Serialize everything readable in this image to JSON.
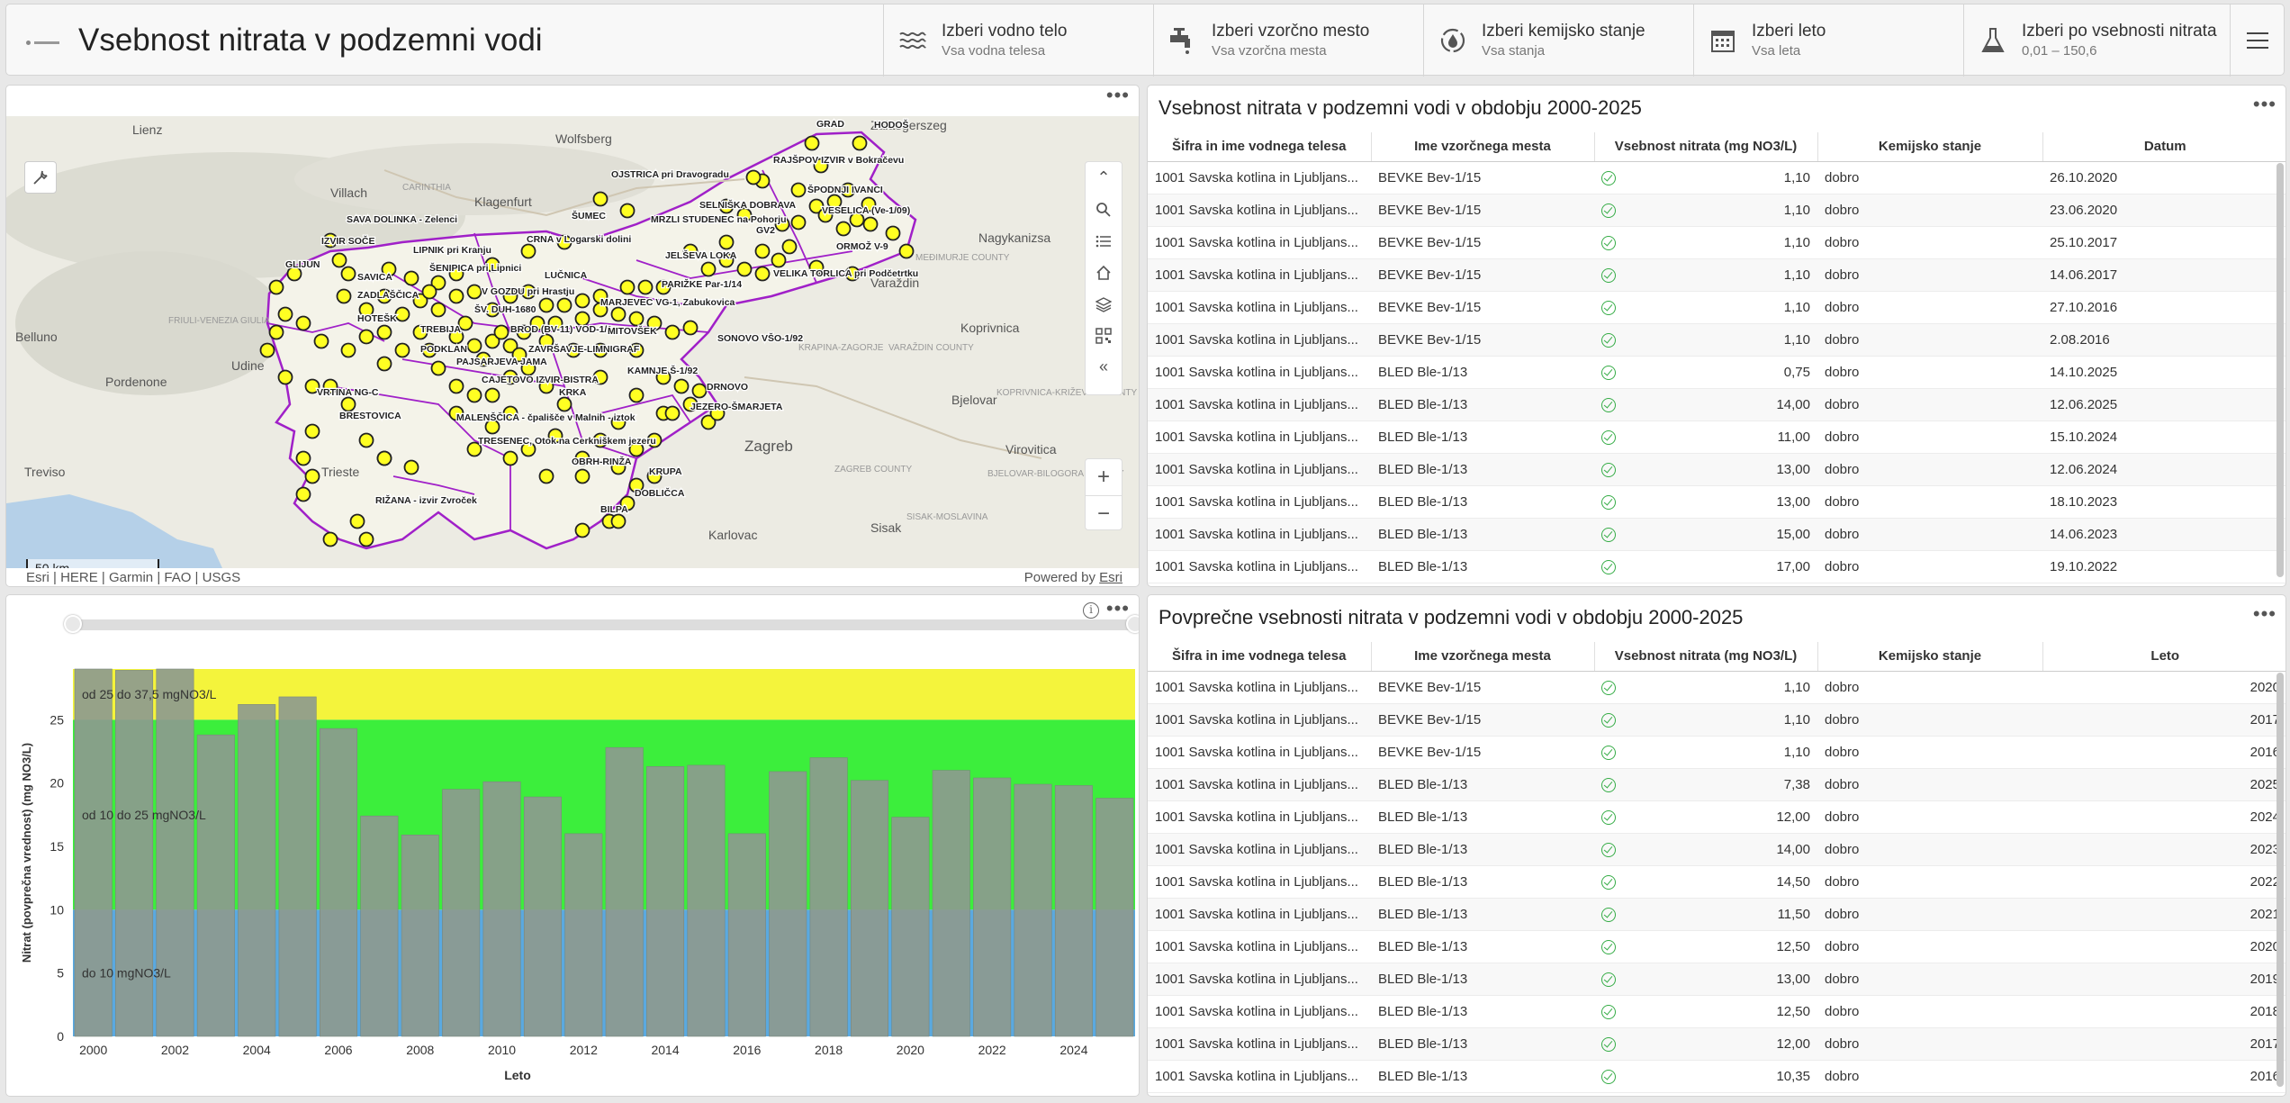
{
  "header": {
    "title": "Vsebnost nitrata v podzemni vodi",
    "selectors": [
      {
        "label": "Izberi vodno telo",
        "value": "Vsa vodna telesa",
        "icon": "waves-icon"
      },
      {
        "label": "Izberi vzorčno mesto",
        "value": "Vsa vzorčna mesta",
        "icon": "faucet-icon"
      },
      {
        "label": "Izberi kemijsko stanje",
        "value": "Vsa stanja",
        "icon": "recycle-drop-icon"
      },
      {
        "label": "Izberi leto",
        "value": "Vsa leta",
        "icon": "calendar-icon"
      },
      {
        "label": "Izberi po vsebnosti nitrata",
        "value": "0,01 – 150,6",
        "icon": "flask-icon"
      }
    ]
  },
  "map": {
    "scale_label": "50 km",
    "attribution": "Esri | HERE | Garmin | FAO | USGS",
    "powered_prefix": "Powered by ",
    "powered_link": "Esri",
    "region_labels": [
      "Lienz",
      "Wolfsberg",
      "Villach",
      "Klagenfurt",
      "CARINTHIA",
      "Zalaegerszeg",
      "Nagykanizsa",
      "Varaždin",
      "Koprivnica",
      "Bjelovar",
      "Virovitica",
      "Zagreb",
      "Karlovac",
      "Sisak",
      "Trieste",
      "Udine",
      "Belluno",
      "Pordenone",
      "Treviso",
      "FRIULI-VENEZIA GIULIA",
      "ZAGREB COUNTY",
      "SISAK-MOSLAVINA",
      "BJELOVAR-BILOGORA COUNTY",
      "KOPRIVNICA-KRIŽEVCI COUNTY",
      "VARAŽDIN COUNTY",
      "MEĐIMURJE COUNTY",
      "KRAPINA-ZAGORJE"
    ],
    "station_labels": [
      "GRAD",
      "HODOŠ",
      "RAJŠPOV IZVIR v Bokračevu",
      "OJSTRICA pri Dravogradu",
      "ŠPODNJI IVANCI",
      "SELNIŠKA DOBRAVA",
      "VESELICA (Ve-1/09)",
      "ŠUMEC",
      "MRZLI STUDENEC na Pohorju",
      "GV2",
      "ORMOŽ V-9",
      "SAVA DOLINKA - Zelenci",
      "IZVIR SOČE",
      "LIPNIK pri Kranju",
      "JELŠEVA LOKA",
      "VELIKA TORLICA pri Podčetrtku",
      "CRNA v Logarski dolini",
      "GLIJUN",
      "SAVICA",
      "ŠENIPICA pri Lipnici",
      "LUČNICA",
      "ZADLAŠČICA",
      "PARIŽKE Par-1/14",
      "V GOZDU pri Hrastju",
      "MARJEVEC VG-1, Zabukovica",
      "HOTEŠK",
      "ŠV. DUH-1680",
      "TREBIJA",
      "BROD (BV-11) VOD-1/1",
      "MITOVŠEK",
      "SONOVO VŠO-1/92",
      "PODKLAN",
      "PAJSARJEVA JAMA",
      "ZAVRŠAVJE-LIMNIGRAF",
      "KAMNJE Š-1/92",
      "VRTINA NG-C",
      "CAJETOVO IZVIR-BISTRA",
      "KRKA",
      "DRNOVO",
      "BRESTOVICA",
      "JEZERO-ŠMARJETA",
      "MALENŠČICA - čpališče v Malnih - iztok",
      "TRESENEC, Otok na Cerkniškem jezeru",
      "OBRH-RINŽA",
      "KRUPA",
      "RIŽANA - izvir Zvroček",
      "DOBLIČCA",
      "BILPA"
    ]
  },
  "table1": {
    "title": "Vsebnost nitrata v podzemni vodi v obdobju 2000-2025",
    "columns": [
      "Šifra in ime vodnega telesa",
      "Ime vzorčnega mesta",
      "Vsebnost nitrata (mg NO3/L)",
      "Kemijsko stanje",
      "Datum"
    ],
    "rows": [
      [
        "1001 Savska kotlina in Ljubljans...",
        "BEVKE Bev-1/15",
        "1,10",
        "dobro",
        "26.10.2020"
      ],
      [
        "1001 Savska kotlina in Ljubljans...",
        "BEVKE Bev-1/15",
        "1,10",
        "dobro",
        "23.06.2020"
      ],
      [
        "1001 Savska kotlina in Ljubljans...",
        "BEVKE Bev-1/15",
        "1,10",
        "dobro",
        "25.10.2017"
      ],
      [
        "1001 Savska kotlina in Ljubljans...",
        "BEVKE Bev-1/15",
        "1,10",
        "dobro",
        "14.06.2017"
      ],
      [
        "1001 Savska kotlina in Ljubljans...",
        "BEVKE Bev-1/15",
        "1,10",
        "dobro",
        "27.10.2016"
      ],
      [
        "1001 Savska kotlina in Ljubljans...",
        "BEVKE Bev-1/15",
        "1,10",
        "dobro",
        "2.08.2016"
      ],
      [
        "1001 Savska kotlina in Ljubljans...",
        "BLED Ble-1/13",
        "0,75",
        "dobro",
        "14.10.2025"
      ],
      [
        "1001 Savska kotlina in Ljubljans...",
        "BLED Ble-1/13",
        "14,00",
        "dobro",
        "12.06.2025"
      ],
      [
        "1001 Savska kotlina in Ljubljans...",
        "BLED Ble-1/13",
        "11,00",
        "dobro",
        "15.10.2024"
      ],
      [
        "1001 Savska kotlina in Ljubljans...",
        "BLED Ble-1/13",
        "13,00",
        "dobro",
        "12.06.2024"
      ],
      [
        "1001 Savska kotlina in Ljubljans...",
        "BLED Ble-1/13",
        "13,00",
        "dobro",
        "18.10.2023"
      ],
      [
        "1001 Savska kotlina in Ljubljans...",
        "BLED Ble-1/13",
        "15,00",
        "dobro",
        "14.06.2023"
      ],
      [
        "1001 Savska kotlina in Ljubljans...",
        "BLED Ble-1/13",
        "17,00",
        "dobro",
        "19.10.2022"
      ]
    ]
  },
  "table2": {
    "title": "Povprečne vsebnosti nitrata v podzemni vodi v obdobju 2000-2025",
    "columns": [
      "Šifra in ime vodnega telesa",
      "Ime vzorčnega mesta",
      "Vsebnost nitrata (mg NO3/L)",
      "Kemijsko stanje",
      "Leto"
    ],
    "rows": [
      [
        "1001 Savska kotlina in Ljubljans...",
        "BEVKE Bev-1/15",
        "1,10",
        "dobro",
        "2020"
      ],
      [
        "1001 Savska kotlina in Ljubljans...",
        "BEVKE Bev-1/15",
        "1,10",
        "dobro",
        "2017"
      ],
      [
        "1001 Savska kotlina in Ljubljans...",
        "BEVKE Bev-1/15",
        "1,10",
        "dobro",
        "2016"
      ],
      [
        "1001 Savska kotlina in Ljubljans...",
        "BLED Ble-1/13",
        "7,38",
        "dobro",
        "2025"
      ],
      [
        "1001 Savska kotlina in Ljubljans...",
        "BLED Ble-1/13",
        "12,00",
        "dobro",
        "2024"
      ],
      [
        "1001 Savska kotlina in Ljubljans...",
        "BLED Ble-1/13",
        "14,00",
        "dobro",
        "2023"
      ],
      [
        "1001 Savska kotlina in Ljubljans...",
        "BLED Ble-1/13",
        "14,50",
        "dobro",
        "2022"
      ],
      [
        "1001 Savska kotlina in Ljubljans...",
        "BLED Ble-1/13",
        "11,50",
        "dobro",
        "2021"
      ],
      [
        "1001 Savska kotlina in Ljubljans...",
        "BLED Ble-1/13",
        "12,50",
        "dobro",
        "2020"
      ],
      [
        "1001 Savska kotlina in Ljubljans...",
        "BLED Ble-1/13",
        "13,00",
        "dobro",
        "2019"
      ],
      [
        "1001 Savska kotlina in Ljubljans...",
        "BLED Ble-1/13",
        "12,50",
        "dobro",
        "2018"
      ],
      [
        "1001 Savska kotlina in Ljubljans...",
        "BLED Ble-1/13",
        "12,00",
        "dobro",
        "2017"
      ],
      [
        "1001 Savska kotlina in Ljubljans...",
        "BLED Ble-1/13",
        "10,35",
        "dobro",
        "2016"
      ]
    ]
  },
  "chart_data": {
    "type": "bar",
    "xlabel": "Leto",
    "ylabel": "Nitrat (povprečna vrednost) (mg NO3/L)",
    "ylim": [
      0,
      29
    ],
    "yticks": [
      0,
      5,
      10,
      15,
      20,
      25
    ],
    "xticks": [
      "2000",
      "2002",
      "2004",
      "2006",
      "2008",
      "2010",
      "2012",
      "2014",
      "2016",
      "2018",
      "2020",
      "2022",
      "2024"
    ],
    "categories": [
      "2000",
      "2001",
      "2002",
      "2003",
      "2004",
      "2005",
      "2006",
      "2007",
      "2008",
      "2009",
      "2010",
      "2011",
      "2012",
      "2013",
      "2014",
      "2015",
      "2016",
      "2017",
      "2018",
      "2019",
      "2020",
      "2021",
      "2022",
      "2023",
      "2024",
      "2025"
    ],
    "values": [
      29,
      28.9,
      29,
      23.8,
      26.2,
      26.8,
      24.3,
      17.4,
      15.9,
      19.5,
      20.1,
      18.9,
      16,
      22.8,
      21.3,
      21.4,
      16,
      20.9,
      22,
      20.2,
      17.3,
      21,
      20.4,
      19.9,
      19.8,
      18.8
    ],
    "bands": [
      {
        "label": "do 10 mgNO3/L",
        "from": 0,
        "to": 10,
        "color": "#5aa9e0"
      },
      {
        "label": "od 10 do 25 mgNO3/L",
        "from": 10,
        "to": 25,
        "color": "#3cee3c"
      },
      {
        "label": "od 25 do 37,5 mgNO3/L",
        "from": 25,
        "to": 29,
        "color": "#f4f43c"
      }
    ],
    "bar_color": "#8d9a8f"
  }
}
